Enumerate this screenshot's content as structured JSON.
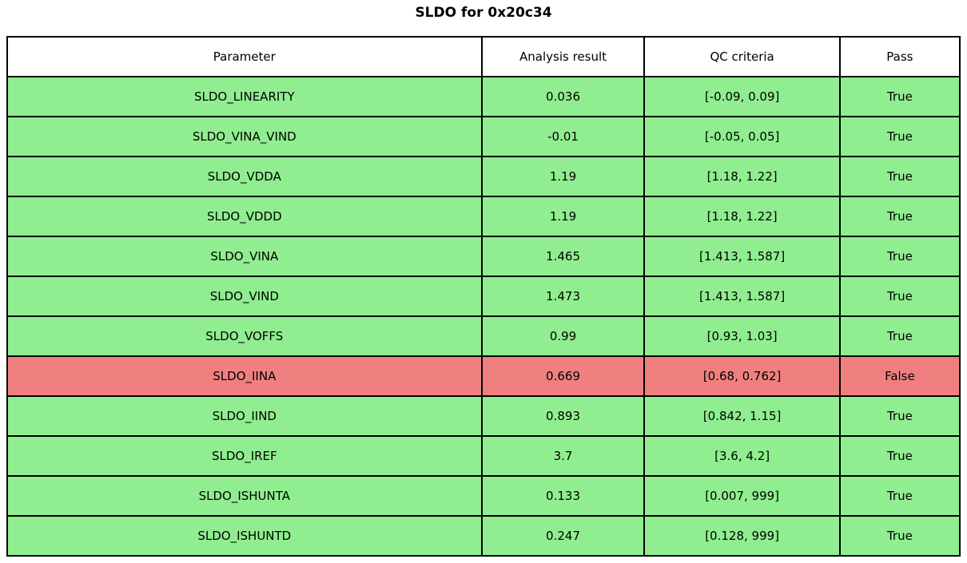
{
  "title": "SLDO for 0x20c34",
  "colors": {
    "pass_row_bg": "#90EE90",
    "fail_row_bg": "#F08080",
    "header_bg": "#FFFFFF",
    "border": "#000000"
  },
  "table": {
    "headers": [
      "Parameter",
      "Analysis result",
      "QC criteria",
      "Pass"
    ],
    "rows": [
      {
        "parameter": "SLDO_LINEARITY",
        "result": "0.036",
        "criteria": "[-0.09, 0.09]",
        "pass": "True",
        "status": "pass"
      },
      {
        "parameter": "SLDO_VINA_VIND",
        "result": "-0.01",
        "criteria": "[-0.05, 0.05]",
        "pass": "True",
        "status": "pass"
      },
      {
        "parameter": "SLDO_VDDA",
        "result": "1.19",
        "criteria": "[1.18, 1.22]",
        "pass": "True",
        "status": "pass"
      },
      {
        "parameter": "SLDO_VDDD",
        "result": "1.19",
        "criteria": "[1.18, 1.22]",
        "pass": "True",
        "status": "pass"
      },
      {
        "parameter": "SLDO_VINA",
        "result": "1.465",
        "criteria": "[1.413, 1.587]",
        "pass": "True",
        "status": "pass"
      },
      {
        "parameter": "SLDO_VIND",
        "result": "1.473",
        "criteria": "[1.413, 1.587]",
        "pass": "True",
        "status": "pass"
      },
      {
        "parameter": "SLDO_VOFFS",
        "result": "0.99",
        "criteria": "[0.93, 1.03]",
        "pass": "True",
        "status": "pass"
      },
      {
        "parameter": "SLDO_IINA",
        "result": "0.669",
        "criteria": "[0.68, 0.762]",
        "pass": "False",
        "status": "fail"
      },
      {
        "parameter": "SLDO_IIND",
        "result": "0.893",
        "criteria": "[0.842, 1.15]",
        "pass": "True",
        "status": "pass"
      },
      {
        "parameter": "SLDO_IREF",
        "result": "3.7",
        "criteria": "[3.6, 4.2]",
        "pass": "True",
        "status": "pass"
      },
      {
        "parameter": "SLDO_ISHUNTA",
        "result": "0.133",
        "criteria": "[0.007, 999]",
        "pass": "True",
        "status": "pass"
      },
      {
        "parameter": "SLDO_ISHUNTD",
        "result": "0.247",
        "criteria": "[0.128, 999]",
        "pass": "True",
        "status": "pass"
      }
    ]
  },
  "chart_data": {
    "type": "table",
    "title": "SLDO for 0x20c34",
    "columns": [
      "Parameter",
      "Analysis result",
      "QC criteria",
      "Pass"
    ],
    "rows": [
      [
        "SLDO_LINEARITY",
        0.036,
        "[-0.09, 0.09]",
        true
      ],
      [
        "SLDO_VINA_VIND",
        -0.01,
        "[-0.05, 0.05]",
        true
      ],
      [
        "SLDO_VDDA",
        1.19,
        "[1.18, 1.22]",
        true
      ],
      [
        "SLDO_VDDD",
        1.19,
        "[1.18, 1.22]",
        true
      ],
      [
        "SLDO_VINA",
        1.465,
        "[1.413, 1.587]",
        true
      ],
      [
        "SLDO_VIND",
        1.473,
        "[1.413, 1.587]",
        true
      ],
      [
        "SLDO_VOFFS",
        0.99,
        "[0.93, 1.03]",
        true
      ],
      [
        "SLDO_IINA",
        0.669,
        "[0.68, 0.762]",
        false
      ],
      [
        "SLDO_IIND",
        0.893,
        "[0.842, 1.15]",
        true
      ],
      [
        "SLDO_IREF",
        3.7,
        "[3.6, 4.2]",
        true
      ],
      [
        "SLDO_ISHUNTA",
        0.133,
        "[0.007, 999]",
        true
      ],
      [
        "SLDO_ISHUNTD",
        0.247,
        "[0.128, 999]",
        true
      ]
    ],
    "legend_position": "none",
    "grid": true,
    "row_color_rule": "green #90EE90 when Pass is True, red #F08080 when Pass is False"
  }
}
